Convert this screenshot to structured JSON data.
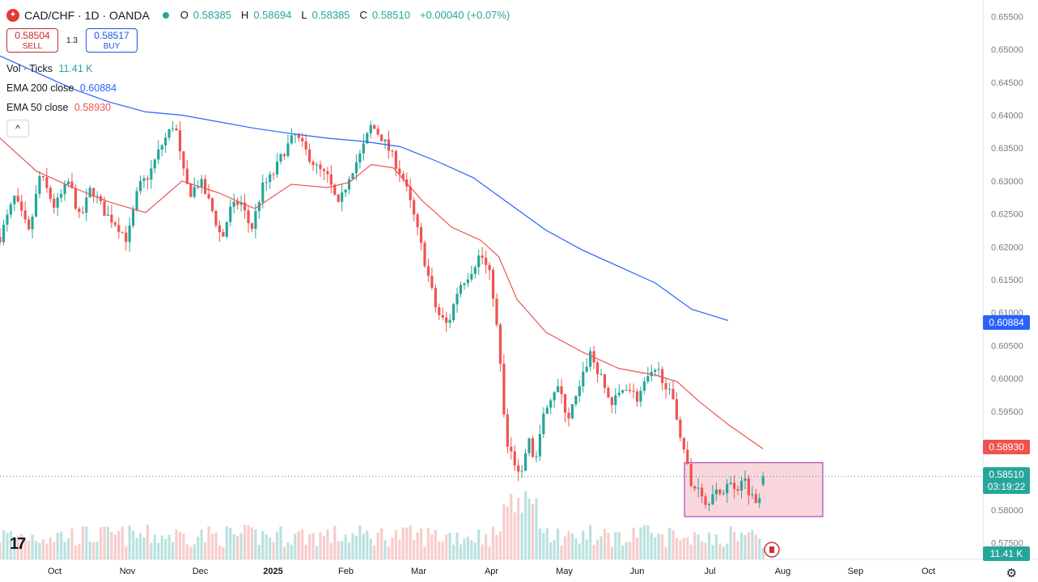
{
  "header": {
    "symbol": "CAD/CHF · 1D · OANDA",
    "symbol_icon": "oanda-flag-icon",
    "open_label": "O",
    "open": "0.58385",
    "high_label": "H",
    "high": "0.58694",
    "low_label": "L",
    "low": "0.58385",
    "close_label": "C",
    "close": "0.58510",
    "change": "+0.00040 (+0.07%)"
  },
  "trade": {
    "sell_price": "0.58504",
    "sell_label": "SELL",
    "spread": "1.3",
    "buy_price": "0.58517",
    "buy_label": "BUY"
  },
  "indicators": {
    "vol_label": "Vol · Ticks",
    "vol_value": "11.41 K",
    "ema200_label": "EMA 200 close",
    "ema200_value": "0.60884",
    "ema50_label": "EMA 50 close",
    "ema50_value": "0.58930",
    "collapse_glyph": "^"
  },
  "price_labels": {
    "ema200": "0.60884",
    "ema50": "0.58930",
    "last_price": "0.58510",
    "countdown": "03:19:22",
    "volume": "11.41 K"
  },
  "colors": {
    "up": "#26a69a",
    "down": "#ef5350",
    "ema200": "#2962ff",
    "ema50": "#ef5350",
    "box_fill": "#f7c6cd",
    "box_stroke": "#9c27b0"
  },
  "chart_data": {
    "type": "candlestick",
    "ylim": [
      0.5725,
      0.6575
    ],
    "y_ticks": [
      "0.65500",
      "0.65000",
      "0.64500",
      "0.64000",
      "0.63500",
      "0.63000",
      "0.62500",
      "0.62000",
      "0.61500",
      "0.61000",
      "0.60500",
      "0.60000",
      "0.59500",
      "0.59000",
      "0.58500",
      "0.58000",
      "0.57500"
    ],
    "x_ticks": [
      "Oct",
      "Nov",
      "Dec",
      "2025",
      "Feb",
      "Mar",
      "Apr",
      "May",
      "Jun",
      "Jul",
      "Aug",
      "Sep",
      "Oct"
    ],
    "x_tick_positions": [
      0.75,
      1.75,
      2.75,
      3.75,
      4.75,
      5.75,
      6.75,
      7.75,
      8.75,
      9.75,
      10.75,
      11.75,
      12.75
    ],
    "x_range": [
      0,
      13.5
    ],
    "close_path": [
      [
        0,
        0.6215
      ],
      [
        0.2,
        0.6275
      ],
      [
        0.4,
        0.622
      ],
      [
        0.55,
        0.631
      ],
      [
        0.75,
        0.626
      ],
      [
        0.95,
        0.63
      ],
      [
        1.1,
        0.624
      ],
      [
        1.25,
        0.629
      ],
      [
        1.45,
        0.625
      ],
      [
        1.6,
        0.6235
      ],
      [
        1.75,
        0.621
      ],
      [
        1.9,
        0.629
      ],
      [
        2.05,
        0.631
      ],
      [
        2.2,
        0.635
      ],
      [
        2.4,
        0.639
      ],
      [
        2.5,
        0.632
      ],
      [
        2.6,
        0.628
      ],
      [
        2.75,
        0.63
      ],
      [
        2.9,
        0.626
      ],
      [
        3.05,
        0.621
      ],
      [
        3.15,
        0.6255
      ],
      [
        3.3,
        0.627
      ],
      [
        3.45,
        0.6225
      ],
      [
        3.6,
        0.629
      ],
      [
        3.75,
        0.631
      ],
      [
        3.9,
        0.6345
      ],
      [
        4.05,
        0.637
      ],
      [
        4.2,
        0.6345
      ],
      [
        4.35,
        0.632
      ],
      [
        4.5,
        0.6305
      ],
      [
        4.65,
        0.626
      ],
      [
        4.8,
        0.631
      ],
      [
        4.95,
        0.634
      ],
      [
        5.1,
        0.6385
      ],
      [
        5.25,
        0.6365
      ],
      [
        5.4,
        0.6335
      ],
      [
        5.55,
        0.63
      ],
      [
        5.7,
        0.624
      ],
      [
        5.85,
        0.617
      ],
      [
        6.0,
        0.61
      ],
      [
        6.15,
        0.608
      ],
      [
        6.3,
        0.614
      ],
      [
        6.45,
        0.616
      ],
      [
        6.6,
        0.619
      ],
      [
        6.75,
        0.615
      ],
      [
        6.85,
        0.605
      ],
      [
        6.95,
        0.59
      ],
      [
        7.05,
        0.588
      ],
      [
        7.15,
        0.584
      ],
      [
        7.25,
        0.591
      ],
      [
        7.35,
        0.587
      ],
      [
        7.5,
        0.596
      ],
      [
        7.65,
        0.599
      ],
      [
        7.8,
        0.594
      ],
      [
        7.95,
        0.598
      ],
      [
        8.1,
        0.604
      ],
      [
        8.25,
        0.6
      ],
      [
        8.4,
        0.596
      ],
      [
        8.6,
        0.599
      ],
      [
        8.75,
        0.597
      ],
      [
        8.9,
        0.6
      ],
      [
        9.05,
        0.601
      ],
      [
        9.15,
        0.599
      ],
      [
        9.25,
        0.596
      ],
      [
        9.4,
        0.589
      ],
      [
        9.5,
        0.583
      ],
      [
        9.6,
        0.584
      ],
      [
        9.7,
        0.5805
      ],
      [
        9.8,
        0.5835
      ],
      [
        9.9,
        0.5815
      ],
      [
        10.0,
        0.585
      ],
      [
        10.1,
        0.5825
      ],
      [
        10.2,
        0.5855
      ],
      [
        10.3,
        0.5825
      ],
      [
        10.4,
        0.581
      ],
      [
        10.48,
        0.5851
      ]
    ],
    "ema50": [
      [
        0,
        0.6365
      ],
      [
        0.5,
        0.6315
      ],
      [
        1.0,
        0.629
      ],
      [
        1.5,
        0.6268
      ],
      [
        2.0,
        0.6252
      ],
      [
        2.5,
        0.63
      ],
      [
        3.0,
        0.6282
      ],
      [
        3.5,
        0.6258
      ],
      [
        4.0,
        0.6295
      ],
      [
        4.5,
        0.629
      ],
      [
        4.8,
        0.6298
      ],
      [
        5.1,
        0.6325
      ],
      [
        5.4,
        0.632
      ],
      [
        5.8,
        0.627
      ],
      [
        6.2,
        0.623
      ],
      [
        6.6,
        0.621
      ],
      [
        6.85,
        0.6185
      ],
      [
        7.1,
        0.612
      ],
      [
        7.5,
        0.607
      ],
      [
        8.0,
        0.604
      ],
      [
        8.5,
        0.6015
      ],
      [
        9.0,
        0.6005
      ],
      [
        9.3,
        0.5995
      ],
      [
        9.6,
        0.5965
      ],
      [
        10.0,
        0.593
      ],
      [
        10.48,
        0.5893
      ]
    ],
    "ema200": [
      [
        0,
        0.649
      ],
      [
        0.5,
        0.6465
      ],
      [
        1.0,
        0.644
      ],
      [
        1.5,
        0.642
      ],
      [
        2.0,
        0.6405
      ],
      [
        2.5,
        0.64
      ],
      [
        3.0,
        0.639
      ],
      [
        3.5,
        0.638
      ],
      [
        4.0,
        0.6372
      ],
      [
        4.5,
        0.6365
      ],
      [
        5.0,
        0.636
      ],
      [
        5.5,
        0.6352
      ],
      [
        6.0,
        0.633
      ],
      [
        6.5,
        0.6305
      ],
      [
        7.0,
        0.6265
      ],
      [
        7.5,
        0.6225
      ],
      [
        8.0,
        0.6195
      ],
      [
        8.5,
        0.617
      ],
      [
        9.0,
        0.6145
      ],
      [
        9.5,
        0.6105
      ],
      [
        10.0,
        0.6088
      ]
    ],
    "last_price": 0.5851,
    "range_box": {
      "x_start": 9.4,
      "x_end": 11.3,
      "y_low": 0.579,
      "y_high": 0.5872
    }
  }
}
